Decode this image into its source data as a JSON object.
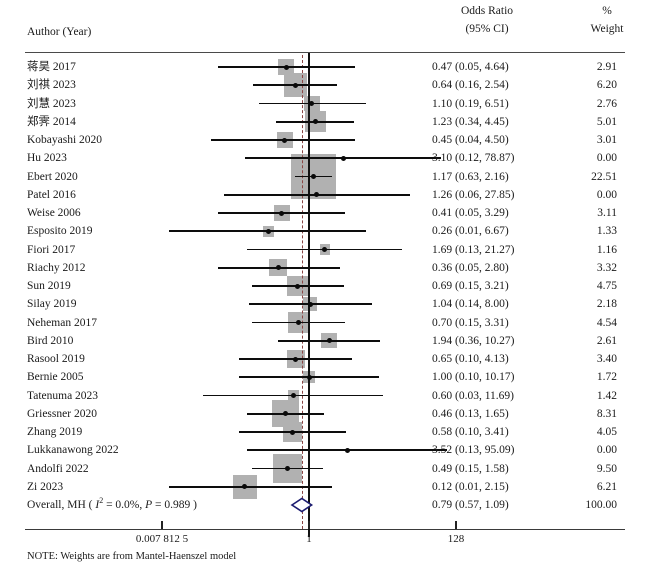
{
  "header": {
    "author_col": "Author (Year)",
    "or_col_line1": "Odds Ratio",
    "or_col_line2": "(95% CI)",
    "weight_col_line1": "%",
    "weight_col_line2": "Weight"
  },
  "note": "NOTE: Weights are from Mantel-Haenszel model",
  "overall": {
    "label_pre": "Overall, MH ( ",
    "label_i": "I",
    "label_sup": "2",
    "label_mid": " = 0.0%, ",
    "label_p": "P",
    "label_post": " = 0.989 )",
    "or_text": "0.79 (0.57, 1.09)",
    "weight_text": "100.00"
  },
  "colors": {
    "box_gray": "#b1b1b1",
    "ci_black": "#0d0d0d",
    "diamond_navy": "#1c1c70",
    "dashed_ref_maroon": "#8b4543"
  },
  "chart_data": {
    "type": "forest",
    "effect_measure": "Odds Ratio",
    "x_axis": {
      "scale": "log2",
      "ticks": [
        {
          "value": 0.0078125,
          "label": "0.007 812 5"
        },
        {
          "value": 1,
          "label": "1"
        },
        {
          "value": 128,
          "label": "128"
        }
      ],
      "null_ref_line": 1.0,
      "overall_dashed_ref": 0.79
    },
    "studies": [
      {
        "author": "蒋昊 2017",
        "or": 0.47,
        "ci_low": 0.05,
        "ci_high": 4.64,
        "weight": 2.91,
        "or_text": "0.47 (0.05, 4.64)",
        "weight_text": "2.91"
      },
      {
        "author": "刘祺 2023",
        "or": 0.64,
        "ci_low": 0.16,
        "ci_high": 2.54,
        "weight": 6.2,
        "or_text": "0.64 (0.16, 2.54)",
        "weight_text": "6.20"
      },
      {
        "author": "刘慧 2023",
        "or": 1.1,
        "ci_low": 0.19,
        "ci_high": 6.51,
        "weight": 2.76,
        "or_text": "1.10 (0.19, 6.51)",
        "weight_text": "2.76"
      },
      {
        "author": "郑霁 2014",
        "or": 1.23,
        "ci_low": 0.34,
        "ci_high": 4.45,
        "weight": 5.01,
        "or_text": "1.23 (0.34, 4.45)",
        "weight_text": "5.01"
      },
      {
        "author": "Kobayashi 2020",
        "or": 0.45,
        "ci_low": 0.04,
        "ci_high": 4.5,
        "weight": 3.01,
        "or_text": "0.45 (0.04, 4.50)",
        "weight_text": "3.01"
      },
      {
        "author": "Hu 2023",
        "or": 3.1,
        "ci_low": 0.12,
        "ci_high": 78.87,
        "weight": 0.0,
        "or_text": "3.10 (0.12, 78.87)",
        "weight_text": "0.00"
      },
      {
        "author": "Ebert 2020",
        "or": 1.17,
        "ci_low": 0.63,
        "ci_high": 2.16,
        "weight": 22.51,
        "or_text": "1.17 (0.63, 2.16)",
        "weight_text": "22.51"
      },
      {
        "author": "Patel 2016",
        "or": 1.26,
        "ci_low": 0.06,
        "ci_high": 27.85,
        "weight": 0.0,
        "or_text": "1.26 (0.06, 27.85)",
        "weight_text": "0.00"
      },
      {
        "author": "Weise 2006",
        "or": 0.41,
        "ci_low": 0.05,
        "ci_high": 3.29,
        "weight": 3.11,
        "or_text": "0.41 (0.05, 3.29)",
        "weight_text": "3.11"
      },
      {
        "author": "Esposito 2019",
        "or": 0.26,
        "ci_low": 0.01,
        "ci_high": 6.67,
        "weight": 1.33,
        "or_text": "0.26 (0.01, 6.67)",
        "weight_text": "1.33"
      },
      {
        "author": "Fiori 2017",
        "or": 1.69,
        "ci_low": 0.13,
        "ci_high": 21.27,
        "weight": 1.16,
        "or_text": "1.69 (0.13, 21.27)",
        "weight_text": "1.16"
      },
      {
        "author": "Riachy 2012",
        "or": 0.36,
        "ci_low": 0.05,
        "ci_high": 2.8,
        "weight": 3.32,
        "or_text": "0.36 (0.05, 2.80)",
        "weight_text": "3.32"
      },
      {
        "author": "Sun 2019",
        "or": 0.69,
        "ci_low": 0.15,
        "ci_high": 3.21,
        "weight": 4.75,
        "or_text": "0.69 (0.15, 3.21)",
        "weight_text": "4.75"
      },
      {
        "author": "Silay 2019",
        "or": 1.04,
        "ci_low": 0.14,
        "ci_high": 8.0,
        "weight": 2.18,
        "or_text": "1.04 (0.14, 8.00)",
        "weight_text": "2.18"
      },
      {
        "author": "Neheman 2017",
        "or": 0.7,
        "ci_low": 0.15,
        "ci_high": 3.31,
        "weight": 4.54,
        "or_text": "0.70 (0.15, 3.31)",
        "weight_text": "4.54"
      },
      {
        "author": "Bird 2010",
        "or": 1.94,
        "ci_low": 0.36,
        "ci_high": 10.27,
        "weight": 2.61,
        "or_text": "1.94 (0.36, 10.27)",
        "weight_text": "2.61"
      },
      {
        "author": "Rasool 2019",
        "or": 0.65,
        "ci_low": 0.1,
        "ci_high": 4.13,
        "weight": 3.4,
        "or_text": "0.65 (0.10, 4.13)",
        "weight_text": "3.40"
      },
      {
        "author": "Bernie 2005",
        "or": 1.0,
        "ci_low": 0.1,
        "ci_high": 10.17,
        "weight": 1.72,
        "or_text": "1.00 (0.10, 10.17)",
        "weight_text": "1.72"
      },
      {
        "author": "Tatenuma 2023",
        "or": 0.6,
        "ci_low": 0.03,
        "ci_high": 11.69,
        "weight": 1.42,
        "or_text": "0.60 (0.03, 11.69)",
        "weight_text": "1.42"
      },
      {
        "author": "Griessner 2020",
        "or": 0.46,
        "ci_low": 0.13,
        "ci_high": 1.65,
        "weight": 8.31,
        "or_text": "0.46 (0.13, 1.65)",
        "weight_text": "8.31"
      },
      {
        "author": "Zhang 2019",
        "or": 0.58,
        "ci_low": 0.1,
        "ci_high": 3.41,
        "weight": 4.05,
        "or_text": "0.58 (0.10, 3.41)",
        "weight_text": "4.05"
      },
      {
        "author": "Lukkanawong 2022",
        "or": 3.52,
        "ci_low": 0.13,
        "ci_high": 95.09,
        "weight": 0.0,
        "or_text": "3.52 (0.13, 95.09)",
        "weight_text": "0.00"
      },
      {
        "author": "Andolfi 2022",
        "or": 0.49,
        "ci_low": 0.15,
        "ci_high": 1.58,
        "weight": 9.5,
        "or_text": "0.49 (0.15, 1.58)",
        "weight_text": "9.50"
      },
      {
        "author": "Zi 2023",
        "or": 0.12,
        "ci_low": 0.01,
        "ci_high": 2.15,
        "weight": 6.21,
        "or_text": "0.12 (0.01, 2.15)",
        "weight_text": "6.21"
      }
    ],
    "overall": {
      "label": "Overall, MH ( I2 = 0.0%, P = 0.989 )",
      "heterogeneity_i2": "0.0%",
      "heterogeneity_p": "0.989",
      "or": 0.79,
      "ci_low": 0.57,
      "ci_high": 1.09,
      "weight": 100.0,
      "or_text": "0.79 (0.57, 1.09)",
      "weight_text": "100.00"
    },
    "model_note": "NOTE: Weights are from Mantel-Haenszel model"
  }
}
